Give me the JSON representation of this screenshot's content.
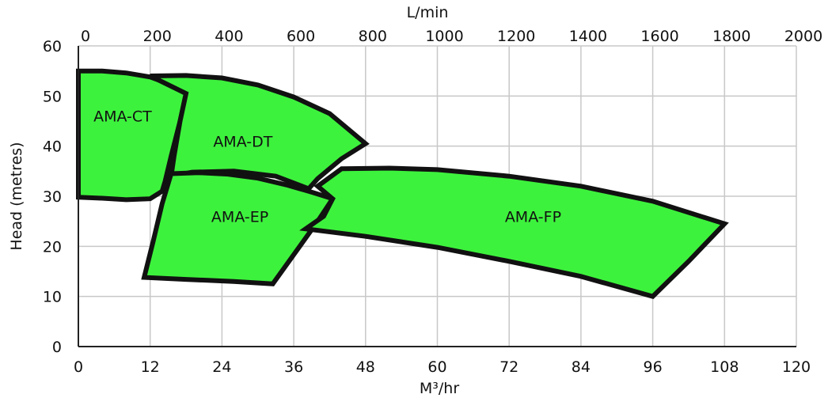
{
  "chart_data": {
    "type": "area",
    "title": "",
    "xlabel": "M³/hr",
    "x2label": "L/min",
    "ylabel": "Head (metres)",
    "xlim": [
      0,
      120
    ],
    "x2lim": [
      0,
      2000
    ],
    "ylim": [
      0,
      60
    ],
    "x_ticks": [
      0,
      12,
      24,
      36,
      48,
      60,
      72,
      84,
      96,
      108,
      120
    ],
    "x2_ticks": [
      0,
      200,
      400,
      600,
      800,
      1000,
      1200,
      1400,
      1600,
      1800,
      2000
    ],
    "y_ticks": [
      0,
      10,
      20,
      30,
      40,
      50,
      60
    ],
    "grid": true,
    "fill_color": "#3df23d",
    "outline_color": "#111111",
    "grid_color": "#c8c8c8",
    "series": [
      {
        "name": "AMA-CT",
        "polygon": [
          [
            0,
            55
          ],
          [
            4,
            55
          ],
          [
            8,
            54.6
          ],
          [
            12,
            53.8
          ],
          [
            15,
            52.5
          ],
          [
            18,
            50.5
          ],
          [
            17,
            45
          ],
          [
            15.5,
            38
          ],
          [
            14.5,
            33
          ],
          [
            14,
            31
          ],
          [
            12,
            29.5
          ],
          [
            8,
            29.3
          ],
          [
            4,
            29.6
          ],
          [
            0,
            29.8
          ]
        ],
        "label_xy": [
          7.4,
          46
        ]
      },
      {
        "name": "AMA-DT",
        "polygon": [
          [
            12,
            54
          ],
          [
            18,
            54.1
          ],
          [
            24,
            53.6
          ],
          [
            30,
            52.2
          ],
          [
            36,
            49.8
          ],
          [
            42,
            46.5
          ],
          [
            48,
            40.5
          ],
          [
            44,
            37.5
          ],
          [
            40,
            33.5
          ],
          [
            38.5,
            31.5
          ],
          [
            33,
            34
          ],
          [
            26,
            35
          ],
          [
            19,
            34.8
          ],
          [
            15.5,
            34
          ],
          [
            16,
            38
          ],
          [
            17,
            45
          ],
          [
            18,
            50.5
          ]
        ],
        "label_xy": [
          27.5,
          41
        ]
      },
      {
        "name": "AMA-EP",
        "polygon": [
          [
            15.5,
            34.5
          ],
          [
            20,
            34.7
          ],
          [
            25,
            34.4
          ],
          [
            30,
            33.6
          ],
          [
            35,
            32.2
          ],
          [
            39,
            30.8
          ],
          [
            42.5,
            29.5
          ],
          [
            40,
            25
          ],
          [
            37,
            20
          ],
          [
            32.5,
            12.5
          ],
          [
            26,
            13
          ],
          [
            18,
            13.4
          ],
          [
            11,
            13.8
          ],
          [
            12.5,
            21
          ],
          [
            14,
            28.5
          ]
        ],
        "label_xy": [
          27,
          26
        ]
      },
      {
        "name": "AMA-FP",
        "polygon": [
          [
            44,
            35.5
          ],
          [
            52,
            35.6
          ],
          [
            60,
            35.3
          ],
          [
            72,
            34
          ],
          [
            84,
            32
          ],
          [
            96,
            29
          ],
          [
            108,
            24.5
          ],
          [
            102,
            17
          ],
          [
            96,
            10
          ],
          [
            84,
            14
          ],
          [
            72,
            17
          ],
          [
            60,
            19.8
          ],
          [
            48,
            22
          ],
          [
            38,
            23.5
          ],
          [
            41,
            26
          ],
          [
            42.5,
            29.5
          ],
          [
            40,
            32
          ]
        ],
        "label_xy": [
          76,
          26
        ]
      }
    ]
  }
}
